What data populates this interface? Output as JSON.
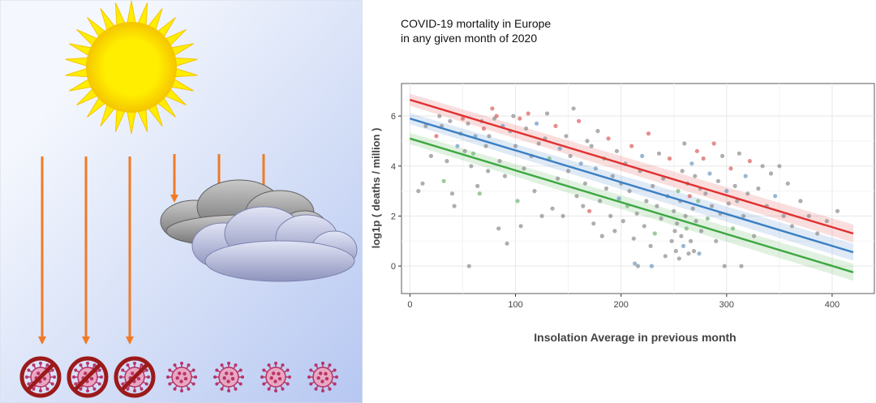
{
  "colors": {
    "sky_top": "#f4f7fd",
    "sky_bottom": "#b6c7f1",
    "sun": "#ffee00",
    "sun_edge": "#f5c400",
    "arrow": "#f07a26",
    "cloud_gray": "#8c8c8c",
    "cloud_blue": "#a5aad0",
    "virus": "#b7346a",
    "ban": "#9c1a1a",
    "series_red": "#e03030",
    "series_blue": "#3a7fc4",
    "series_green": "#3ca840",
    "grid": "#e8e8e8"
  },
  "illustration": {
    "sun_icon": "sun-icon",
    "cloud_icon": "cloud-icon",
    "virus_icon": "virus-icon",
    "ban_icon": "no-symbol-icon",
    "blocked_viruses": 3,
    "free_viruses": 4
  },
  "chart_data": {
    "type": "scatter",
    "title_lines": [
      "COVID-19 mortality in Europe",
      "in any given month of 2020"
    ],
    "xlabel": "Insolation Average in previous month",
    "ylabel": "log1p ( deaths / million )",
    "xlim": [
      -8,
      440
    ],
    "ylim": [
      -1.1,
      7.3
    ],
    "xticks": [
      0,
      100,
      200,
      300,
      400
    ],
    "yticks": [
      0,
      2,
      4,
      6
    ],
    "grid": true,
    "legend": "none",
    "fit_lines": [
      {
        "name": "red",
        "x0": 0,
        "y0": 6.65,
        "x1": 420,
        "y1": 1.3,
        "band": 0.3
      },
      {
        "name": "blue",
        "x0": 0,
        "y0": 5.9,
        "x1": 420,
        "y1": 0.55,
        "band": 0.28
      },
      {
        "name": "green",
        "x0": 0,
        "y0": 5.1,
        "x1": 420,
        "y1": -0.25,
        "band": 0.28
      }
    ],
    "points": [
      {
        "x": 8,
        "y": 3.0,
        "s": "gray"
      },
      {
        "x": 12,
        "y": 3.3,
        "s": "gray"
      },
      {
        "x": 15,
        "y": 5.6,
        "s": "gray"
      },
      {
        "x": 20,
        "y": 4.4,
        "s": "gray"
      },
      {
        "x": 25,
        "y": 5.2,
        "s": "red"
      },
      {
        "x": 28,
        "y": 6.0,
        "s": "gray"
      },
      {
        "x": 30,
        "y": 5.6,
        "s": "gray"
      },
      {
        "x": 32,
        "y": 3.4,
        "s": "green"
      },
      {
        "x": 35,
        "y": 4.2,
        "s": "gray"
      },
      {
        "x": 38,
        "y": 5.8,
        "s": "gray"
      },
      {
        "x": 40,
        "y": 2.9,
        "s": "gray"
      },
      {
        "x": 42,
        "y": 2.4,
        "s": "gray"
      },
      {
        "x": 45,
        "y": 4.8,
        "s": "blue"
      },
      {
        "x": 48,
        "y": 5.3,
        "s": "gray"
      },
      {
        "x": 50,
        "y": 5.9,
        "s": "red"
      },
      {
        "x": 52,
        "y": 4.6,
        "s": "gray"
      },
      {
        "x": 55,
        "y": 5.7,
        "s": "gray"
      },
      {
        "x": 56,
        "y": 0.0,
        "s": "gray"
      },
      {
        "x": 58,
        "y": 4.0,
        "s": "gray"
      },
      {
        "x": 60,
        "y": 4.5,
        "s": "green"
      },
      {
        "x": 62,
        "y": 5.2,
        "s": "blue"
      },
      {
        "x": 64,
        "y": 3.2,
        "s": "gray"
      },
      {
        "x": 66,
        "y": 2.9,
        "s": "green"
      },
      {
        "x": 68,
        "y": 5.8,
        "s": "gray"
      },
      {
        "x": 70,
        "y": 5.5,
        "s": "red"
      },
      {
        "x": 72,
        "y": 4.8,
        "s": "gray"
      },
      {
        "x": 74,
        "y": 3.8,
        "s": "gray"
      },
      {
        "x": 75,
        "y": 5.2,
        "s": "gray"
      },
      {
        "x": 78,
        "y": 6.3,
        "s": "red"
      },
      {
        "x": 80,
        "y": 5.9,
        "s": "gray"
      },
      {
        "x": 82,
        "y": 6.0,
        "s": "red"
      },
      {
        "x": 84,
        "y": 1.5,
        "s": "gray"
      },
      {
        "x": 85,
        "y": 4.2,
        "s": "gray"
      },
      {
        "x": 88,
        "y": 5.6,
        "s": "blue"
      },
      {
        "x": 90,
        "y": 3.6,
        "s": "gray"
      },
      {
        "x": 92,
        "y": 0.9,
        "s": "gray"
      },
      {
        "x": 95,
        "y": 5.4,
        "s": "gray"
      },
      {
        "x": 98,
        "y": 6.0,
        "s": "gray"
      },
      {
        "x": 100,
        "y": 4.8,
        "s": "gray"
      },
      {
        "x": 102,
        "y": 2.6,
        "s": "green"
      },
      {
        "x": 104,
        "y": 5.9,
        "s": "red"
      },
      {
        "x": 105,
        "y": 1.6,
        "s": "gray"
      },
      {
        "x": 108,
        "y": 3.9,
        "s": "gray"
      },
      {
        "x": 110,
        "y": 5.5,
        "s": "gray"
      },
      {
        "x": 112,
        "y": 6.1,
        "s": "red"
      },
      {
        "x": 115,
        "y": 4.4,
        "s": "gray"
      },
      {
        "x": 118,
        "y": 3.0,
        "s": "gray"
      },
      {
        "x": 120,
        "y": 5.7,
        "s": "blue"
      },
      {
        "x": 122,
        "y": 4.9,
        "s": "gray"
      },
      {
        "x": 125,
        "y": 2.0,
        "s": "gray"
      },
      {
        "x": 128,
        "y": 5.1,
        "s": "gray"
      },
      {
        "x": 130,
        "y": 6.1,
        "s": "gray"
      },
      {
        "x": 132,
        "y": 4.3,
        "s": "green"
      },
      {
        "x": 135,
        "y": 2.3,
        "s": "gray"
      },
      {
        "x": 138,
        "y": 5.6,
        "s": "red"
      },
      {
        "x": 140,
        "y": 3.5,
        "s": "gray"
      },
      {
        "x": 142,
        "y": 4.7,
        "s": "blue"
      },
      {
        "x": 145,
        "y": 2.0,
        "s": "gray"
      },
      {
        "x": 148,
        "y": 5.2,
        "s": "gray"
      },
      {
        "x": 150,
        "y": 3.8,
        "s": "gray"
      },
      {
        "x": 152,
        "y": 4.4,
        "s": "gray"
      },
      {
        "x": 155,
        "y": 6.3,
        "s": "gray"
      },
      {
        "x": 158,
        "y": 2.8,
        "s": "gray"
      },
      {
        "x": 160,
        "y": 5.8,
        "s": "red"
      },
      {
        "x": 162,
        "y": 4.1,
        "s": "blue"
      },
      {
        "x": 164,
        "y": 2.4,
        "s": "gray"
      },
      {
        "x": 166,
        "y": 3.3,
        "s": "gray"
      },
      {
        "x": 168,
        "y": 5.0,
        "s": "gray"
      },
      {
        "x": 170,
        "y": 2.2,
        "s": "red"
      },
      {
        "x": 172,
        "y": 4.8,
        "s": "gray"
      },
      {
        "x": 174,
        "y": 1.7,
        "s": "gray"
      },
      {
        "x": 176,
        "y": 3.9,
        "s": "blue"
      },
      {
        "x": 178,
        "y": 5.4,
        "s": "gray"
      },
      {
        "x": 180,
        "y": 2.6,
        "s": "gray"
      },
      {
        "x": 182,
        "y": 1.2,
        "s": "gray"
      },
      {
        "x": 184,
        "y": 4.3,
        "s": "green"
      },
      {
        "x": 186,
        "y": 3.1,
        "s": "gray"
      },
      {
        "x": 188,
        "y": 5.1,
        "s": "red"
      },
      {
        "x": 190,
        "y": 2.0,
        "s": "gray"
      },
      {
        "x": 192,
        "y": 3.6,
        "s": "gray"
      },
      {
        "x": 194,
        "y": 1.4,
        "s": "gray"
      },
      {
        "x": 196,
        "y": 4.6,
        "s": "gray"
      },
      {
        "x": 198,
        "y": 2.7,
        "s": "blue"
      },
      {
        "x": 200,
        "y": 3.3,
        "s": "gray"
      },
      {
        "x": 202,
        "y": 1.8,
        "s": "gray"
      },
      {
        "x": 204,
        "y": 4.1,
        "s": "gray"
      },
      {
        "x": 206,
        "y": 2.4,
        "s": "green"
      },
      {
        "x": 208,
        "y": 3.0,
        "s": "gray"
      },
      {
        "x": 210,
        "y": 4.8,
        "s": "red"
      },
      {
        "x": 212,
        "y": 1.1,
        "s": "gray"
      },
      {
        "x": 213,
        "y": 0.1,
        "s": "blue"
      },
      {
        "x": 215,
        "y": 2.1,
        "s": "gray"
      },
      {
        "x": 216,
        "y": 0.0,
        "s": "gray"
      },
      {
        "x": 218,
        "y": 3.8,
        "s": "gray"
      },
      {
        "x": 220,
        "y": 4.4,
        "s": "blue"
      },
      {
        "x": 222,
        "y": 1.6,
        "s": "gray"
      },
      {
        "x": 224,
        "y": 2.6,
        "s": "gray"
      },
      {
        "x": 226,
        "y": 5.3,
        "s": "red"
      },
      {
        "x": 228,
        "y": 0.8,
        "s": "gray"
      },
      {
        "x": 229,
        "y": 0.0,
        "s": "blue"
      },
      {
        "x": 230,
        "y": 3.2,
        "s": "gray"
      },
      {
        "x": 232,
        "y": 1.3,
        "s": "green"
      },
      {
        "x": 234,
        "y": 2.4,
        "s": "gray"
      },
      {
        "x": 236,
        "y": 4.5,
        "s": "gray"
      },
      {
        "x": 238,
        "y": 1.9,
        "s": "gray"
      },
      {
        "x": 240,
        "y": 3.5,
        "s": "gray"
      },
      {
        "x": 242,
        "y": 0.4,
        "s": "gray"
      },
      {
        "x": 244,
        "y": 2.8,
        "s": "blue"
      },
      {
        "x": 246,
        "y": 4.3,
        "s": "red"
      },
      {
        "x": 248,
        "y": 1.0,
        "s": "gray"
      },
      {
        "x": 250,
        "y": 2.2,
        "s": "gray"
      },
      {
        "x": 251,
        "y": 1.4,
        "s": "gray"
      },
      {
        "x": 252,
        "y": 0.6,
        "s": "gray"
      },
      {
        "x": 253,
        "y": 1.7,
        "s": "gray"
      },
      {
        "x": 254,
        "y": 3.0,
        "s": "green"
      },
      {
        "x": 255,
        "y": 0.3,
        "s": "gray"
      },
      {
        "x": 256,
        "y": 2.6,
        "s": "gray"
      },
      {
        "x": 257,
        "y": 1.2,
        "s": "gray"
      },
      {
        "x": 258,
        "y": 3.8,
        "s": "gray"
      },
      {
        "x": 259,
        "y": 0.8,
        "s": "blue"
      },
      {
        "x": 260,
        "y": 4.9,
        "s": "gray"
      },
      {
        "x": 261,
        "y": 2.0,
        "s": "gray"
      },
      {
        "x": 262,
        "y": 1.5,
        "s": "green"
      },
      {
        "x": 263,
        "y": 3.3,
        "s": "gray"
      },
      {
        "x": 264,
        "y": 0.5,
        "s": "gray"
      },
      {
        "x": 265,
        "y": 2.8,
        "s": "red"
      },
      {
        "x": 266,
        "y": 1.0,
        "s": "gray"
      },
      {
        "x": 267,
        "y": 4.1,
        "s": "blue"
      },
      {
        "x": 268,
        "y": 2.3,
        "s": "gray"
      },
      {
        "x": 269,
        "y": 0.6,
        "s": "gray"
      },
      {
        "x": 270,
        "y": 3.6,
        "s": "gray"
      },
      {
        "x": 271,
        "y": 1.8,
        "s": "gray"
      },
      {
        "x": 272,
        "y": 4.6,
        "s": "red"
      },
      {
        "x": 273,
        "y": 2.6,
        "s": "green"
      },
      {
        "x": 274,
        "y": 0.5,
        "s": "blue"
      },
      {
        "x": 275,
        "y": 3.1,
        "s": "gray"
      },
      {
        "x": 276,
        "y": 1.4,
        "s": "gray"
      },
      {
        "x": 278,
        "y": 4.3,
        "s": "red"
      },
      {
        "x": 280,
        "y": 2.9,
        "s": "gray"
      },
      {
        "x": 282,
        "y": 1.9,
        "s": "green"
      },
      {
        "x": 284,
        "y": 3.7,
        "s": "blue"
      },
      {
        "x": 286,
        "y": 2.4,
        "s": "gray"
      },
      {
        "x": 288,
        "y": 4.9,
        "s": "red"
      },
      {
        "x": 290,
        "y": 1.0,
        "s": "gray"
      },
      {
        "x": 292,
        "y": 3.4,
        "s": "gray"
      },
      {
        "x": 294,
        "y": 2.1,
        "s": "gray"
      },
      {
        "x": 296,
        "y": 4.4,
        "s": "gray"
      },
      {
        "x": 298,
        "y": 0.0,
        "s": "gray"
      },
      {
        "x": 300,
        "y": 3.0,
        "s": "blue"
      },
      {
        "x": 302,
        "y": 2.5,
        "s": "gray"
      },
      {
        "x": 304,
        "y": 3.9,
        "s": "red"
      },
      {
        "x": 306,
        "y": 1.5,
        "s": "green"
      },
      {
        "x": 308,
        "y": 3.2,
        "s": "gray"
      },
      {
        "x": 310,
        "y": 2.6,
        "s": "gray"
      },
      {
        "x": 312,
        "y": 4.5,
        "s": "gray"
      },
      {
        "x": 314,
        "y": 0.0,
        "s": "gray"
      },
      {
        "x": 316,
        "y": 2.0,
        "s": "gray"
      },
      {
        "x": 318,
        "y": 3.6,
        "s": "blue"
      },
      {
        "x": 320,
        "y": 2.9,
        "s": "gray"
      },
      {
        "x": 322,
        "y": 4.2,
        "s": "red"
      },
      {
        "x": 326,
        "y": 1.2,
        "s": "gray"
      },
      {
        "x": 330,
        "y": 3.1,
        "s": "gray"
      },
      {
        "x": 334,
        "y": 4.0,
        "s": "gray"
      },
      {
        "x": 338,
        "y": 2.4,
        "s": "gray"
      },
      {
        "x": 342,
        "y": 3.7,
        "s": "gray"
      },
      {
        "x": 346,
        "y": 2.8,
        "s": "blue"
      },
      {
        "x": 350,
        "y": 4.0,
        "s": "gray"
      },
      {
        "x": 354,
        "y": 2.0,
        "s": "gray"
      },
      {
        "x": 358,
        "y": 3.3,
        "s": "gray"
      },
      {
        "x": 362,
        "y": 1.6,
        "s": "gray"
      },
      {
        "x": 370,
        "y": 2.6,
        "s": "gray"
      },
      {
        "x": 378,
        "y": 2.0,
        "s": "gray"
      },
      {
        "x": 386,
        "y": 1.3,
        "s": "gray"
      },
      {
        "x": 395,
        "y": 1.8,
        "s": "gray"
      },
      {
        "x": 405,
        "y": 2.2,
        "s": "gray"
      }
    ]
  }
}
